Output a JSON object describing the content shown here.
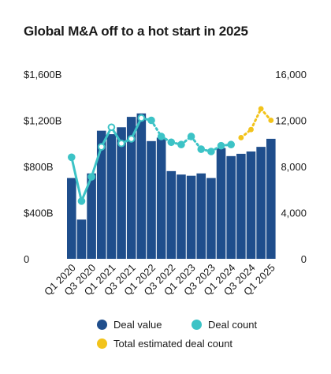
{
  "title": "Global M&A off to a hot start in 2025",
  "colors": {
    "deal_value": "#1f4e8c",
    "deal_count": "#3cc3c6",
    "estimated": "#f2c31b"
  },
  "legend": {
    "deal_value": "Deal value",
    "deal_count": "Deal count",
    "estimated": "Total estimated deal count"
  },
  "chart_data": {
    "type": "bar",
    "title": "Global M&A off to a hot start in 2025",
    "categories": [
      "Q1 2020",
      "Q2 2020",
      "Q3 2020",
      "Q4 2020",
      "Q1 2021",
      "Q2 2021",
      "Q3 2021",
      "Q4 2021",
      "Q1 2022",
      "Q2 2022",
      "Q3 2022",
      "Q4 2022",
      "Q1 2023",
      "Q2 2023",
      "Q3 2023",
      "Q4 2023",
      "Q1 2024",
      "Q2 2024",
      "Q3 2024",
      "Q4 2024",
      "Q1 2025"
    ],
    "x_tick_labels": [
      "Q1 2020",
      "Q3 2020",
      "Q1 2021",
      "Q3 2021",
      "Q1 2022",
      "Q3 2022",
      "Q1 2023",
      "Q3 2023",
      "Q1 2024",
      "Q3 2024",
      "Q1 2025"
    ],
    "left_axis": {
      "ticks": [
        "$1,600B",
        "$1,200B",
        "$800B",
        "$400B",
        "0"
      ],
      "ylim": [
        0,
        1600
      ]
    },
    "right_axis": {
      "ticks": [
        "16,000",
        "12,000",
        "8,000",
        "4,000",
        "0"
      ],
      "ylim": [
        0,
        16000
      ]
    },
    "series": [
      {
        "name": "Deal value",
        "axis": "left",
        "kind": "bar",
        "values": [
          700,
          340,
          740,
          1110,
          1080,
          1140,
          1230,
          1260,
          1020,
          1050,
          760,
          730,
          720,
          740,
          700,
          960,
          890,
          910,
          930,
          970,
          1040
        ]
      },
      {
        "name": "Deal count",
        "axis": "right",
        "kind": "line",
        "values": [
          8800,
          5000,
          7100,
          9700,
          11400,
          10000,
          10400,
          12200,
          12000,
          10600,
          10100,
          9900,
          10600,
          9500,
          9300,
          9800,
          9900,
          null,
          null,
          null,
          null
        ]
      },
      {
        "name": "Total estimated deal count",
        "axis": "right",
        "kind": "line",
        "style": "dotted",
        "values": [
          null,
          null,
          null,
          null,
          null,
          null,
          null,
          null,
          null,
          null,
          null,
          null,
          null,
          null,
          null,
          null,
          null,
          10500,
          11200,
          13000,
          12000
        ]
      }
    ],
    "grid": false,
    "legend_position": "bottom"
  }
}
